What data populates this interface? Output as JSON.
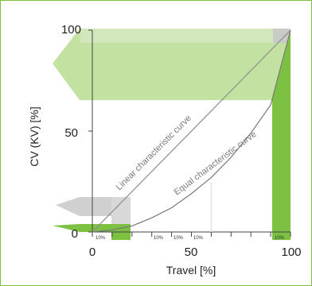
{
  "chart_data": {
    "type": "line",
    "title": "",
    "xlabel": "Travel [%]",
    "ylabel": "CV (KV) [%]",
    "xlim": [
      0,
      100
    ],
    "ylim": [
      0,
      100
    ],
    "x_ticks": [
      "0",
      "50",
      "100"
    ],
    "y_ticks": [
      "0",
      "50",
      "100"
    ],
    "segment_label": "10%",
    "series": [
      {
        "name": "Linear characteristic curve",
        "x": [
          0,
          100
        ],
        "y": [
          0,
          100
        ]
      },
      {
        "name": "Equal characteristic curve",
        "x": [
          0,
          10,
          20,
          30,
          40,
          50,
          60,
          70,
          80,
          90,
          100
        ],
        "y": [
          0,
          1,
          3,
          7,
          12,
          19,
          27,
          37,
          49,
          63,
          100
        ]
      }
    ],
    "colors": {
      "highlight": "#7cc142",
      "highlight_light": "#b9dd92",
      "gray_band": "#c8c8c8",
      "line": "#888888"
    },
    "grid": false
  }
}
